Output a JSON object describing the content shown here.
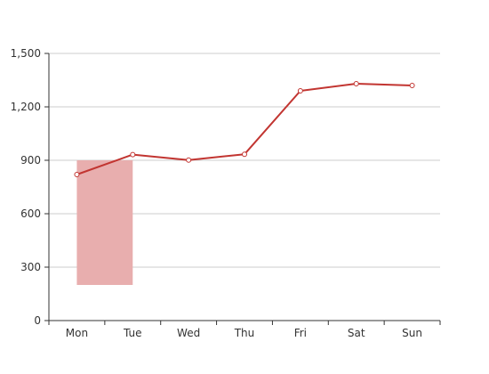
{
  "chart_data": {
    "type": "line",
    "categories": [
      "Mon",
      "Tue",
      "Wed",
      "Thu",
      "Fri",
      "Sat",
      "Sun"
    ],
    "series": [
      {
        "values": [
          820,
          932,
          901,
          934,
          1290,
          1330,
          1320
        ],
        "color": "#c23531"
      }
    ],
    "highlight_band": {
      "from_category": "Mon",
      "to_category": "Tue",
      "y_range": [
        200,
        900
      ],
      "color": "#e8aeae"
    },
    "y_ticks": [
      "0",
      "300",
      "600",
      "900",
      "1,200",
      "1,500"
    ],
    "y_tick_values": [
      0,
      300,
      600,
      900,
      1200,
      1500
    ],
    "ylim": [
      0,
      1500
    ],
    "grid": true,
    "title": "",
    "xlabel": "",
    "ylabel": ""
  }
}
